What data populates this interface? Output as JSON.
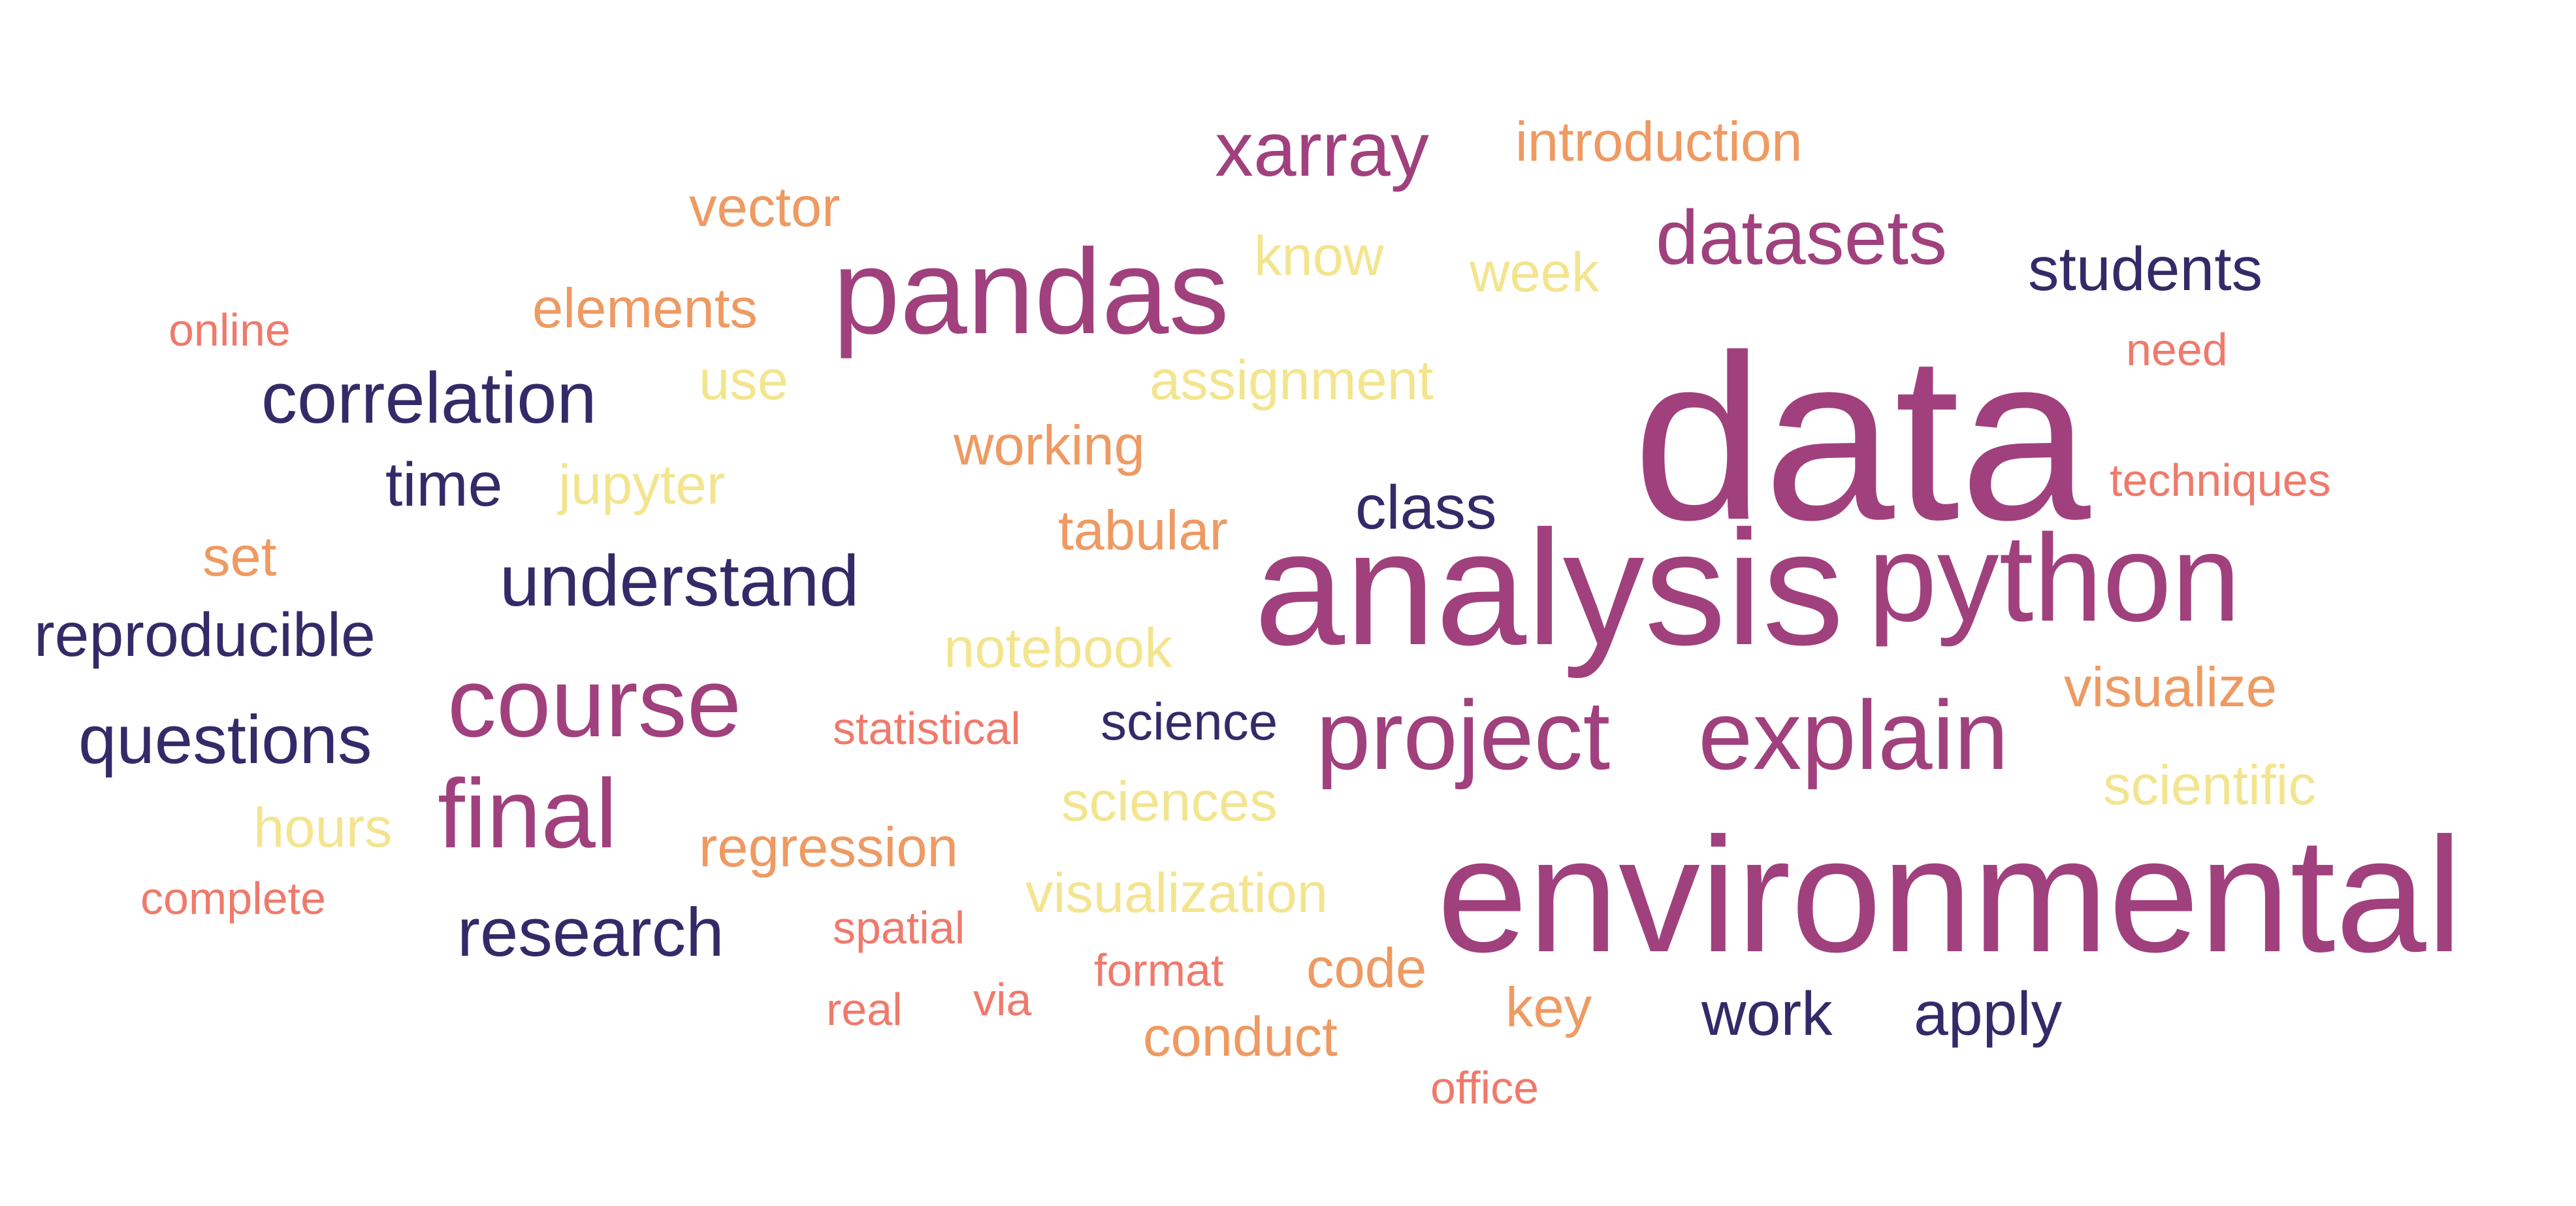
{
  "palette": {
    "magenta": "#a0417e",
    "navy": "#352a68",
    "orange": "#ee9a62",
    "coral": "#ef7a6c",
    "yellow": "#f3e58f"
  },
  "words": [
    {
      "text": "data",
      "color": "magenta"
    },
    {
      "text": "analysis",
      "color": "magenta"
    },
    {
      "text": "environmental",
      "color": "magenta"
    },
    {
      "text": "python",
      "color": "magenta"
    },
    {
      "text": "pandas",
      "color": "magenta"
    },
    {
      "text": "course",
      "color": "magenta"
    },
    {
      "text": "project",
      "color": "magenta"
    },
    {
      "text": "explain",
      "color": "magenta"
    },
    {
      "text": "final",
      "color": "magenta"
    },
    {
      "text": "datasets",
      "color": "magenta"
    },
    {
      "text": "xarray",
      "color": "magenta"
    },
    {
      "text": "correlation",
      "color": "navy"
    },
    {
      "text": "understand",
      "color": "navy"
    },
    {
      "text": "questions",
      "color": "navy"
    },
    {
      "text": "research",
      "color": "navy"
    },
    {
      "text": "reproducible",
      "color": "navy"
    },
    {
      "text": "students",
      "color": "navy"
    },
    {
      "text": "time",
      "color": "navy"
    },
    {
      "text": "class",
      "color": "navy"
    },
    {
      "text": "science",
      "color": "navy"
    },
    {
      "text": "work",
      "color": "navy"
    },
    {
      "text": "apply",
      "color": "navy"
    },
    {
      "text": "introduction",
      "color": "orange"
    },
    {
      "text": "vector",
      "color": "orange"
    },
    {
      "text": "elements",
      "color": "orange"
    },
    {
      "text": "working",
      "color": "orange"
    },
    {
      "text": "tabular",
      "color": "orange"
    },
    {
      "text": "set",
      "color": "orange"
    },
    {
      "text": "regression",
      "color": "orange"
    },
    {
      "text": "visualize",
      "color": "orange"
    },
    {
      "text": "code",
      "color": "orange"
    },
    {
      "text": "conduct",
      "color": "orange"
    },
    {
      "text": "key",
      "color": "orange"
    },
    {
      "text": "online",
      "color": "coral"
    },
    {
      "text": "need",
      "color": "coral"
    },
    {
      "text": "techniques",
      "color": "coral"
    },
    {
      "text": "statistical",
      "color": "coral"
    },
    {
      "text": "complete",
      "color": "coral"
    },
    {
      "text": "spatial",
      "color": "coral"
    },
    {
      "text": "format",
      "color": "coral"
    },
    {
      "text": "real",
      "color": "coral"
    },
    {
      "text": "via",
      "color": "coral"
    },
    {
      "text": "office",
      "color": "coral"
    },
    {
      "text": "know",
      "color": "yellow"
    },
    {
      "text": "week",
      "color": "yellow"
    },
    {
      "text": "use",
      "color": "yellow"
    },
    {
      "text": "assignment",
      "color": "yellow"
    },
    {
      "text": "jupyter",
      "color": "yellow"
    },
    {
      "text": "notebook",
      "color": "yellow"
    },
    {
      "text": "hours",
      "color": "yellow"
    },
    {
      "text": "sciences",
      "color": "yellow"
    },
    {
      "text": "scientific",
      "color": "yellow"
    },
    {
      "text": "visualization",
      "color": "yellow"
    }
  ]
}
